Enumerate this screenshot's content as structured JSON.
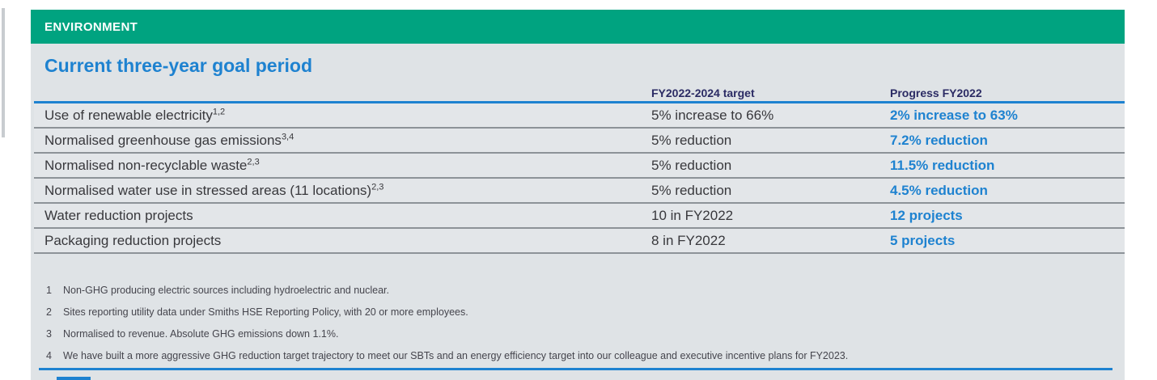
{
  "section": {
    "header_label": "ENVIRONMENT",
    "title": "Current three-year goal period"
  },
  "table": {
    "columns": [
      "",
      "FY2022-2024 target",
      "Progress FY2022"
    ],
    "rows": [
      {
        "label": "Use of renewable electricity",
        "sup": "1,2",
        "target": "5% increase to 66%",
        "progress": "2% increase to 63%"
      },
      {
        "label": "Normalised greenhouse gas emissions",
        "sup": "3,4",
        "target": "5% reduction",
        "progress": "7.2% reduction"
      },
      {
        "label": "Normalised non-recyclable waste",
        "sup": "2,3",
        "target": "5% reduction",
        "progress": "11.5% reduction"
      },
      {
        "label": "Normalised water use in stressed areas (11 locations)",
        "sup": "2,3",
        "target": "5% reduction",
        "progress": "4.5% reduction"
      },
      {
        "label": "Water reduction projects",
        "sup": "",
        "target": "10 in FY2022",
        "progress": "12 projects"
      },
      {
        "label": "Packaging reduction projects",
        "sup": "",
        "target": "8 in FY2022",
        "progress": "5 projects"
      }
    ]
  },
  "footnotes": [
    {
      "num": "1",
      "text": "Non-GHG producing electric sources including hydroelectric and nuclear."
    },
    {
      "num": "2",
      "text": "Sites reporting utility data under Smiths HSE Reporting Policy, with 20 or more employees."
    },
    {
      "num": "3",
      "text": "Normalised to revenue. Absolute GHG emissions down 1.1%."
    },
    {
      "num": "4",
      "text": "We have built a more aggressive GHG reduction target trajectory to meet our SBTs and an energy efficiency target into our colleague and executive incentive plans for FY2023."
    }
  ],
  "colors": {
    "green": "#00A380",
    "blue": "#1E82D0",
    "navy": "#2B2B64",
    "text": "#38383C",
    "sep": "#8D9398",
    "bg": "#DFE3E6",
    "rowbg": "#E3E6E9",
    "fngray": "#45454D",
    "edge": "#C8CCD0"
  }
}
